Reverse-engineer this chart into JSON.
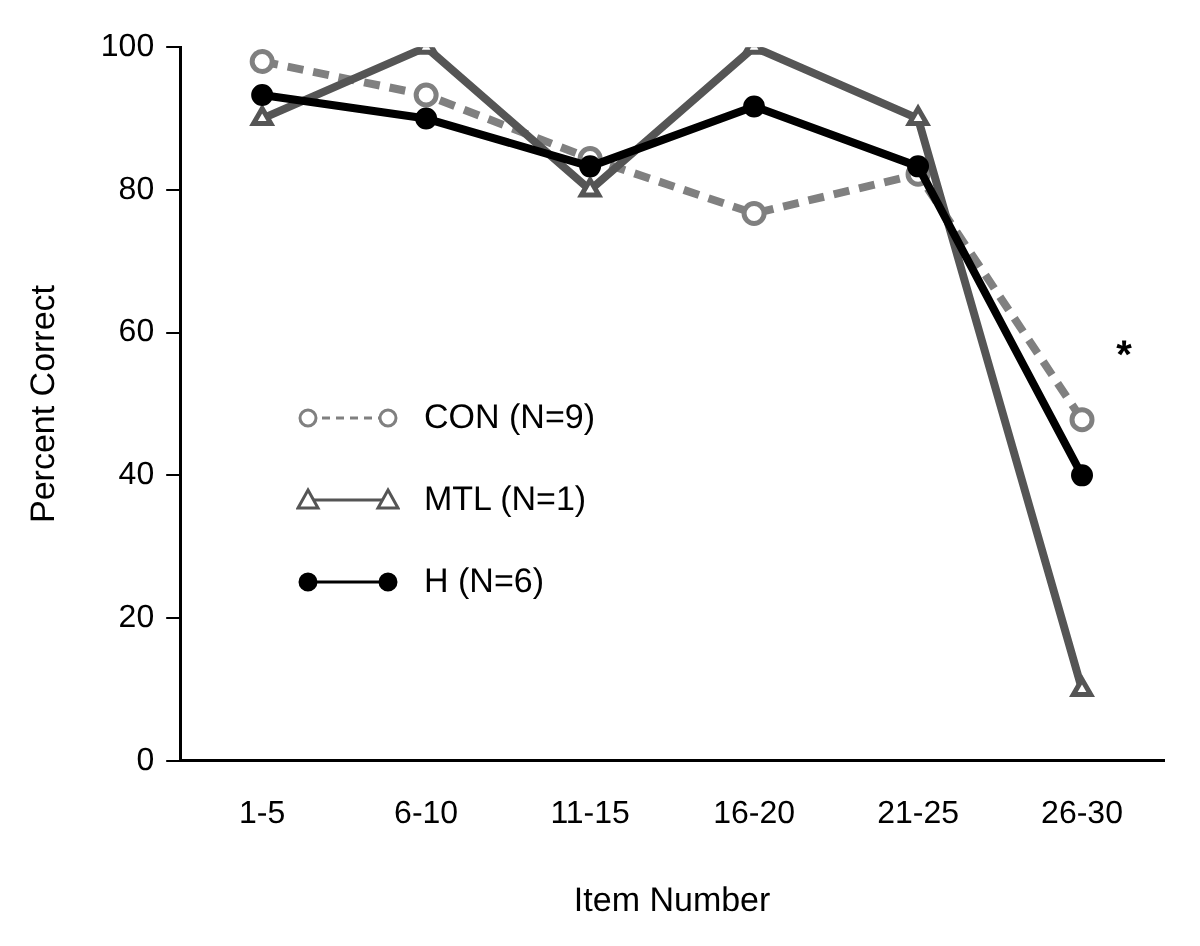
{
  "chart_data": {
    "type": "line",
    "xlabel": "Item Number",
    "ylabel": "Percent Correct",
    "categories": [
      "1-5",
      "6-10",
      "11-15",
      "16-20",
      "21-25",
      "26-30"
    ],
    "series": [
      {
        "name": "CON (N=9)",
        "color": "#808080",
        "marker": "circle",
        "line_style": "dashed",
        "values": [
          98,
          93.3,
          84.4,
          76.7,
          82.2,
          47.8
        ]
      },
      {
        "name": "MTL (N=1)",
        "color": "#555555",
        "marker": "triangle",
        "line_style": "solid",
        "values": [
          90,
          100,
          80,
          100,
          90,
          10
        ]
      },
      {
        "name": "H (N=6)",
        "color": "#000000",
        "marker": "circle",
        "line_style": "solid",
        "values": [
          93.3,
          90,
          83.3,
          91.7,
          83.3,
          40
        ]
      }
    ],
    "ylim": [
      0,
      100
    ],
    "yticks": [
      0,
      20,
      40,
      60,
      80,
      100
    ],
    "grid": false,
    "legend": "left",
    "annotations": [
      "*"
    ]
  }
}
